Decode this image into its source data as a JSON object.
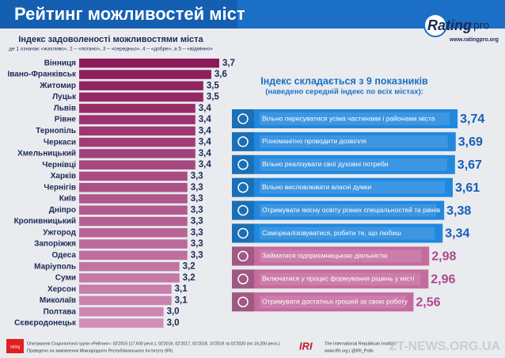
{
  "header": {
    "title": "Рейтинг можливостей міст",
    "logo_main": "Rating",
    "logo_sub": "pro",
    "site": "www.ratingpro.org"
  },
  "chart_data": [
    {
      "type": "bar",
      "orientation": "horizontal",
      "title": "Індекс задоволеності можливостями міста",
      "subtitle": "де 1 означає «жахливо», 2 – «погано», 3 – «середньо», 4 – «добре», а 5 – «відмінно»",
      "categories": [
        "Вінниця",
        "Івано-Франківськ",
        "Житомир",
        "Луцьк",
        "Львів",
        "Рівне",
        "Тернопіль",
        "Черкаси",
        "Хмельницький",
        "Чернівці",
        "Харків",
        "Чернігів",
        "Київ",
        "Дніпро",
        "Кропивницький",
        "Ужгород",
        "Запоріжжя",
        "Одеса",
        "Маріуполь",
        "Суми",
        "Херсон",
        "Миколаїв",
        "Полтава",
        "Сєвєродонецьк"
      ],
      "values": [
        3.7,
        3.6,
        3.5,
        3.5,
        3.4,
        3.4,
        3.4,
        3.4,
        3.4,
        3.4,
        3.3,
        3.3,
        3.3,
        3.3,
        3.3,
        3.3,
        3.3,
        3.3,
        3.2,
        3.2,
        3.1,
        3.1,
        3.0,
        3.0
      ],
      "value_labels": [
        "3,7",
        "3,6",
        "3,5",
        "3,5",
        "3,4",
        "3,4",
        "3,4",
        "3,4",
        "3,4",
        "3,4",
        "3,3",
        "3,3",
        "3,3",
        "3,3",
        "3,3",
        "3,3",
        "3,3",
        "3,3",
        "3,2",
        "3,2",
        "3,1",
        "3,1",
        "3,0",
        "3,0"
      ],
      "colors": [
        "#8b1a5a",
        "#8e1f5e",
        "#912462",
        "#942966",
        "#972e6a",
        "#9a336e",
        "#9d3872",
        "#a03d76",
        "#a3427a",
        "#a6477e",
        "#a94c82",
        "#ac5186",
        "#af568a",
        "#b25b8e",
        "#b56092",
        "#b86596",
        "#bb6a9a",
        "#be6f9e",
        "#c174a2",
        "#c479a6",
        "#c77eaa",
        "#ca83ae",
        "#cd88b2",
        "#d08db6"
      ],
      "xlim": [
        1.94,
        3.8
      ]
    },
    {
      "type": "bar",
      "orientation": "horizontal",
      "title": "Індекс складається з 9 показників",
      "subtitle": "(наведено середній індекс по всіх містах):",
      "categories": [
        "Вільно пересуватися усіма частинами і районами міста",
        "Різноманітно проводити дозвілля",
        "Вільно реалізувати свої духовні потреби",
        "Вільно висловлювати власні думки",
        "Отримувати якісну освіту різних спеціальностей та рівнів",
        "Самореалізовуватися, робити те, що любиш",
        "Займатися підприємницькою діяльністю",
        "Включатися у процес формування рішень у місті",
        "Отримувати достатньо грошей за свою роботу"
      ],
      "values": [
        3.74,
        3.69,
        3.67,
        3.61,
        3.38,
        3.34,
        2.98,
        2.96,
        2.56
      ],
      "value_labels": [
        "3,74",
        "3,69",
        "3,67",
        "3,61",
        "3,38",
        "3,34",
        "2,98",
        "2,96",
        "2,56"
      ],
      "colors": [
        "#2188de",
        "#2188de",
        "#2188de",
        "#2188de",
        "#2188de",
        "#2188de",
        "#c56c9f",
        "#c56c9f",
        "#c56c9f"
      ],
      "label_colors": [
        "#1560b8",
        "#1560b8",
        "#1560b8",
        "#1560b8",
        "#1560b8",
        "#1560b8",
        "#b0488a",
        "#b0488a",
        "#b0488a"
      ],
      "xlim": [
        -2.3,
        3.78
      ]
    }
  ],
  "footer": {
    "badge": "rating",
    "survey": "Опитування Соціологічної групи «Рейтинг»: 03'2015 (17,600 респ.), 02'2016, 02'2017, 02'2018, 10'2019 та 02'2020 (по 19,200 респ.).",
    "client": "Проведено на замовлення Міжнародного Республіканського Інституту (IRI)",
    "iri": "IRI",
    "iri_name": "The International Republican Institute",
    "iri_links": "www.IRI.org | @IRI_Polls",
    "watermark": "ZT-NEWS.ORG.UA"
  }
}
